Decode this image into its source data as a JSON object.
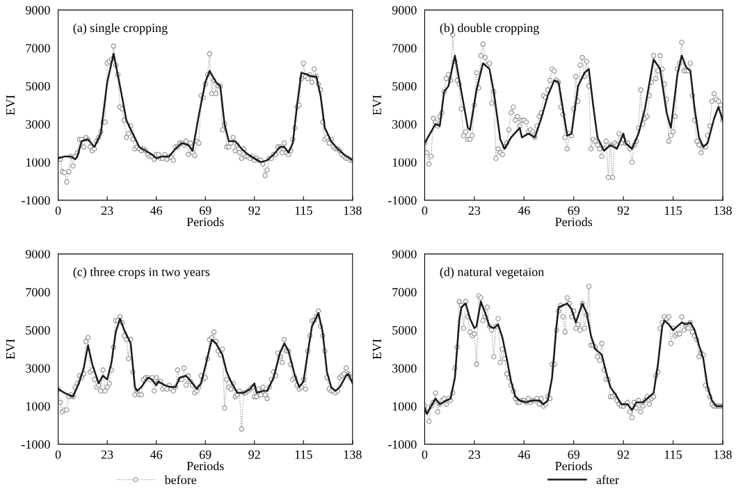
{
  "chart_data": [
    {
      "type": "line",
      "title": "(a) single cropping",
      "xlabel": "Periods",
      "ylabel": "EVI",
      "xlim": [
        0,
        138
      ],
      "ylim": [
        -1000,
        9000
      ],
      "xticks": [
        0,
        23,
        46,
        69,
        92,
        115,
        138
      ],
      "yticks": [
        -1000,
        1000,
        3000,
        5000,
        7000,
        9000
      ],
      "grid": false,
      "x": [
        0,
        1,
        2,
        3,
        4,
        5,
        6,
        7,
        8,
        9,
        10,
        11,
        12,
        13,
        14,
        15,
        16,
        17,
        18,
        19,
        20,
        21,
        22,
        23,
        24,
        25,
        26,
        27,
        28,
        29,
        30,
        31,
        32,
        33,
        34,
        35,
        36,
        37,
        38,
        39,
        40,
        41,
        42,
        43,
        44,
        45,
        46,
        47,
        48,
        49,
        50,
        51,
        52,
        53,
        54,
        55,
        56,
        57,
        58,
        59,
        60,
        61,
        62,
        63,
        64,
        65,
        66,
        67,
        68,
        69,
        70,
        71,
        72,
        73,
        74,
        75,
        76,
        77,
        78,
        79,
        80,
        81,
        82,
        83,
        84,
        85,
        86,
        87,
        88,
        89,
        90,
        91,
        92,
        93,
        94,
        95,
        96,
        97,
        98,
        99,
        100,
        101,
        102,
        103,
        104,
        105,
        106,
        107,
        108,
        109,
        110,
        111,
        112,
        113,
        114,
        115,
        116,
        117,
        118,
        119,
        120,
        121,
        122,
        123,
        124,
        125,
        126,
        127,
        128,
        129,
        130,
        131,
        132,
        133,
        134,
        135,
        136,
        137,
        138
      ],
      "series": [
        {
          "color": "#8c8c8c",
          "marker": "circle",
          "line_style": "dotted",
          "values": [
            1200,
            1150,
            500,
            450,
            -50,
            500,
            1300,
            800,
            1300,
            1500,
            2200,
            2200,
            1800,
            2300,
            2200,
            1800,
            1600,
            1700,
            2100,
            2300,
            2600,
            3100,
            3100,
            6200,
            6300,
            6400,
            7100,
            6100,
            5600,
            3900,
            3800,
            3200,
            2300,
            2500,
            2900,
            2200,
            1700,
            1800,
            1700,
            1600,
            1700,
            1600,
            1400,
            1300,
            1300,
            1150,
            1400,
            1400,
            1200,
            1200,
            1400,
            1150,
            1300,
            1250,
            1100,
            1800,
            1800,
            2000,
            2000,
            1900,
            2100,
            1400,
            2000,
            1500,
            1350,
            2100,
            2000,
            4500,
            4400,
            5100,
            5600,
            6700,
            4600,
            5300,
            4600,
            5000,
            5000,
            2700,
            3000,
            1800,
            1800,
            2000,
            2300,
            1600,
            1900,
            1500,
            1200,
            1700,
            1300,
            1300,
            1200,
            1300,
            1100,
            1200,
            1100,
            1100,
            900,
            300,
            600,
            1200,
            1200,
            1400,
            1400,
            1800,
            1800,
            1500,
            2000,
            1500,
            1400,
            1600,
            2200,
            2800,
            3900,
            4000,
            5400,
            6200,
            5500,
            5400,
            5600,
            5200,
            5900,
            5500,
            5100,
            4800,
            3100,
            2200,
            2300,
            2000,
            2200,
            1800,
            1700,
            1700,
            1600,
            1400,
            1300,
            1200,
            1200,
            1100,
            1100
          ]
        },
        {
          "color": "#1a1a1a",
          "marker": "none",
          "line_style": "solid",
          "x": [
            0,
            3,
            6,
            8,
            9,
            11,
            14,
            17,
            20,
            23,
            26,
            29,
            32,
            35,
            38,
            41,
            44,
            46,
            49,
            52,
            55,
            58,
            61,
            63,
            66,
            69,
            71,
            74,
            76,
            78,
            80,
            83,
            86,
            89,
            92,
            95,
            98,
            101,
            104,
            106,
            108,
            110,
            112,
            114,
            117,
            119,
            121,
            123,
            125,
            128,
            131,
            134,
            138
          ],
          "values": [
            1200,
            1300,
            1300,
            1150,
            1300,
            2100,
            2200,
            1800,
            2500,
            5200,
            6700,
            5000,
            3200,
            2500,
            1800,
            1600,
            1400,
            1200,
            1300,
            1300,
            1700,
            2000,
            1900,
            1600,
            3500,
            5200,
            5800,
            5200,
            5000,
            3000,
            2100,
            2100,
            1700,
            1400,
            1200,
            1000,
            1100,
            1400,
            1800,
            1800,
            1500,
            2000,
            4000,
            5700,
            5600,
            5500,
            5500,
            4500,
            2800,
            2100,
            1700,
            1400,
            1100
          ]
        }
      ]
    },
    {
      "type": "line",
      "title": "(b) double cropping",
      "xlabel": "Periods",
      "ylabel": "EVI",
      "xlim": [
        0,
        138
      ],
      "ylim": [
        -1000,
        9000
      ],
      "xticks": [
        0,
        23,
        46,
        69,
        92,
        115,
        138
      ],
      "yticks": [
        -1000,
        1000,
        3000,
        5000,
        7000,
        9000
      ],
      "grid": false,
      "x": [
        0,
        1,
        2,
        3,
        4,
        5,
        6,
        7,
        8,
        9,
        10,
        11,
        12,
        13,
        14,
        15,
        16,
        17,
        18,
        19,
        20,
        21,
        22,
        23,
        24,
        25,
        26,
        27,
        28,
        29,
        30,
        31,
        32,
        33,
        34,
        35,
        36,
        37,
        38,
        39,
        40,
        41,
        42,
        43,
        44,
        45,
        46,
        47,
        48,
        49,
        50,
        51,
        52,
        53,
        54,
        55,
        56,
        57,
        58,
        59,
        60,
        61,
        62,
        63,
        64,
        65,
        66,
        67,
        68,
        69,
        70,
        71,
        72,
        73,
        74,
        75,
        76,
        77,
        78,
        79,
        80,
        81,
        82,
        83,
        84,
        85,
        86,
        87,
        88,
        89,
        90,
        91,
        92,
        93,
        94,
        95,
        96,
        97,
        98,
        99,
        100,
        101,
        102,
        103,
        104,
        105,
        106,
        107,
        108,
        109,
        110,
        111,
        112,
        113,
        114,
        115,
        116,
        117,
        118,
        119,
        120,
        121,
        122,
        123,
        124,
        125,
        126,
        127,
        128,
        129,
        130,
        131,
        132,
        133,
        134,
        135,
        136,
        137,
        138
      ],
      "series": [
        {
          "color": "#8c8c8c",
          "marker": "circle",
          "line_style": "dotted",
          "values": [
            2000,
            1500,
            900,
            1300,
            3300,
            3100,
            2900,
            3400,
            3600,
            4700,
            5400,
            5600,
            5300,
            7700,
            6300,
            5300,
            5100,
            3800,
            2400,
            2600,
            2200,
            2200,
            2400,
            4000,
            5700,
            4900,
            6600,
            7200,
            6500,
            6100,
            6200,
            4100,
            4700,
            1200,
            1700,
            1500,
            1400,
            1800,
            2000,
            2700,
            3600,
            3900,
            3200,
            3400,
            2900,
            3200,
            3200,
            3100,
            2600,
            2700,
            2600,
            2300,
            2900,
            3400,
            3600,
            4500,
            4400,
            4800,
            5300,
            5900,
            5800,
            5300,
            5200,
            3900,
            3500,
            2300,
            1700,
            2500,
            2400,
            3800,
            5500,
            4200,
            6100,
            6500,
            5500,
            6300,
            5000,
            1700,
            2200,
            2100,
            1900,
            1700,
            1300,
            1700,
            2100,
            200,
            1900,
            200,
            2000,
            1900,
            2500,
            2000,
            2200,
            2000,
            2000,
            1700,
            1000,
            1900,
            2100,
            2800,
            4800,
            3000,
            3300,
            3400,
            4500,
            5200,
            6600,
            5400,
            5800,
            6600,
            5900,
            5100,
            4300,
            2100,
            2400,
            2600,
            3400,
            5900,
            6200,
            7300,
            5800,
            5800,
            5800,
            6200,
            4500,
            3200,
            2100,
            1900,
            1500,
            1800,
            1800,
            2400,
            2900,
            4200,
            4600,
            4300,
            4200,
            4000,
            3200
          ]
        },
        {
          "color": "#1a1a1a",
          "marker": "none",
          "line_style": "solid",
          "x": [
            0,
            3,
            5,
            7,
            9,
            11,
            14,
            17,
            20,
            21,
            24,
            27,
            30,
            32,
            35,
            37,
            40,
            44,
            45,
            48,
            51,
            54,
            57,
            60,
            62,
            64,
            66,
            68,
            71,
            74,
            76,
            78,
            80,
            83,
            86,
            89,
            92,
            93,
            96,
            99,
            102,
            105,
            106,
            109,
            112,
            114,
            117,
            119,
            121,
            123,
            125,
            127,
            129,
            131,
            134,
            136,
            138
          ],
          "values": [
            2000,
            2600,
            3000,
            2900,
            4700,
            5000,
            6600,
            4700,
            2800,
            2700,
            4800,
            6200,
            5900,
            4700,
            2200,
            1700,
            2300,
            2800,
            2300,
            2500,
            2300,
            3300,
            4500,
            5300,
            5200,
            3800,
            2400,
            2500,
            5000,
            5700,
            5900,
            4000,
            2300,
            1600,
            1900,
            1700,
            2500,
            2000,
            1700,
            2500,
            3800,
            5800,
            6400,
            5900,
            3600,
            2800,
            5600,
            6600,
            6000,
            5800,
            3800,
            2300,
            1800,
            2000,
            3300,
            3900,
            3200
          ]
        }
      ]
    },
    {
      "type": "line",
      "title": "(c) three crops in two years",
      "xlabel": "Periods",
      "ylabel": "EVI",
      "xlim": [
        0,
        138
      ],
      "ylim": [
        -1000,
        9000
      ],
      "xticks": [
        0,
        23,
        46,
        69,
        92,
        115,
        138
      ],
      "yticks": [
        -1000,
        1000,
        3000,
        5000,
        7000,
        9000
      ],
      "grid": false,
      "legend": "bottom",
      "x": [
        0,
        1,
        2,
        3,
        4,
        5,
        6,
        7,
        8,
        9,
        10,
        11,
        12,
        13,
        14,
        15,
        16,
        17,
        18,
        19,
        20,
        21,
        22,
        23,
        24,
        25,
        26,
        27,
        28,
        29,
        30,
        31,
        32,
        33,
        34,
        35,
        36,
        37,
        38,
        39,
        40,
        41,
        42,
        43,
        44,
        45,
        46,
        47,
        48,
        49,
        50,
        51,
        52,
        53,
        54,
        55,
        56,
        57,
        58,
        59,
        60,
        61,
        62,
        63,
        64,
        65,
        66,
        67,
        68,
        69,
        70,
        71,
        72,
        73,
        74,
        75,
        76,
        77,
        78,
        79,
        80,
        81,
        82,
        83,
        84,
        85,
        86,
        87,
        88,
        89,
        90,
        91,
        92,
        93,
        94,
        95,
        96,
        97,
        98,
        99,
        100,
        101,
        102,
        103,
        104,
        105,
        106,
        107,
        108,
        109,
        110,
        111,
        112,
        113,
        114,
        115,
        116,
        117,
        118,
        119,
        120,
        121,
        122,
        123,
        124,
        125,
        126,
        127,
        128,
        129,
        130,
        131,
        132,
        133,
        134,
        135,
        136,
        137,
        138
      ],
      "series": [
        {
          "name": "before",
          "color": "#8c8c8c",
          "marker": "circle",
          "line_style": "dotted",
          "values": [
            1900,
            1200,
            700,
            800,
            800,
            1500,
            1600,
            1500,
            2000,
            2200,
            2600,
            2500,
            2700,
            4400,
            4600,
            2800,
            2900,
            2400,
            2000,
            2100,
            1800,
            2900,
            1800,
            2000,
            2200,
            2900,
            4100,
            5500,
            5500,
            5700,
            5400,
            4700,
            4500,
            3500,
            4500,
            2800,
            1600,
            1800,
            1600,
            1600,
            2400,
            2500,
            2500,
            2400,
            2500,
            1800,
            2500,
            2300,
            2300,
            1900,
            2000,
            1900,
            2100,
            1900,
            1800,
            2000,
            2900,
            2400,
            2400,
            3000,
            2100,
            2600,
            2300,
            2100,
            1700,
            1800,
            2000,
            2600,
            2400,
            2500,
            3500,
            4500,
            4600,
            4900,
            4400,
            3900,
            3700,
            4000,
            900,
            2400,
            2000,
            1900,
            2200,
            1500,
            1600,
            1800,
            -200,
            1700,
            1700,
            1800,
            1900,
            2000,
            1500,
            1500,
            1900,
            1600,
            2000,
            1600,
            1400,
            2000,
            2400,
            2800,
            2600,
            3800,
            3600,
            3300,
            4500,
            3900,
            3900,
            3200,
            2400,
            2500,
            2100,
            1900,
            2000,
            2400,
            1900,
            3900,
            4700,
            5500,
            5500,
            5700,
            6000,
            5200,
            4700,
            3900,
            2500,
            1900,
            1800,
            1800,
            1700,
            1800,
            2500,
            2600,
            2700,
            3000,
            2700,
            2500,
            2500
          ]
        },
        {
          "name": "after",
          "color": "#1a1a1a",
          "marker": "none",
          "line_style": "solid",
          "x": [
            0,
            3,
            7,
            10,
            12,
            14,
            16,
            19,
            21,
            23,
            25,
            27,
            29,
            31,
            34,
            36,
            37,
            39,
            42,
            44,
            46,
            47,
            50,
            53,
            55,
            57,
            60,
            63,
            65,
            67,
            69,
            72,
            74,
            77,
            79,
            81,
            84,
            87,
            90,
            92,
            93,
            96,
            98,
            101,
            104,
            106,
            108,
            111,
            113,
            115,
            117,
            119,
            122,
            124,
            126,
            128,
            130,
            132,
            135,
            136,
            138
          ],
          "values": [
            1900,
            1700,
            1500,
            2300,
            3000,
            4200,
            3200,
            2200,
            2600,
            2400,
            3300,
            4900,
            5600,
            5000,
            4300,
            2000,
            1800,
            2000,
            2500,
            2400,
            2100,
            2300,
            2100,
            2000,
            2000,
            2500,
            2600,
            2200,
            1900,
            2200,
            3100,
            4500,
            4300,
            3700,
            2800,
            2300,
            1700,
            1700,
            1900,
            2200,
            1700,
            1800,
            1800,
            2500,
            3800,
            4300,
            3900,
            2600,
            2000,
            2300,
            3800,
            5200,
            5900,
            4900,
            2800,
            2000,
            1800,
            2000,
            2600,
            2700,
            2200
          ]
        }
      ]
    },
    {
      "type": "line",
      "title": "(d) natural vegetaion",
      "xlabel": "Periods",
      "ylabel": "EVI",
      "xlim": [
        0,
        138
      ],
      "ylim": [
        -1000,
        9000
      ],
      "xticks": [
        0,
        23,
        46,
        69,
        92,
        115,
        138
      ],
      "yticks": [
        -1000,
        1000,
        3000,
        5000,
        7000,
        9000
      ],
      "grid": false,
      "x": [
        0,
        1,
        2,
        3,
        4,
        5,
        6,
        7,
        8,
        9,
        10,
        11,
        12,
        13,
        14,
        15,
        16,
        17,
        18,
        19,
        20,
        21,
        22,
        23,
        24,
        25,
        26,
        27,
        28,
        29,
        30,
        31,
        32,
        33,
        34,
        35,
        36,
        37,
        38,
        39,
        40,
        41,
        42,
        43,
        44,
        45,
        46,
        47,
        48,
        49,
        50,
        51,
        52,
        53,
        54,
        55,
        56,
        57,
        58,
        59,
        60,
        61,
        62,
        63,
        64,
        65,
        66,
        67,
        68,
        69,
        70,
        71,
        72,
        73,
        74,
        75,
        76,
        77,
        78,
        79,
        80,
        81,
        82,
        83,
        84,
        85,
        86,
        87,
        88,
        89,
        90,
        91,
        92,
        93,
        94,
        95,
        96,
        97,
        98,
        99,
        100,
        101,
        102,
        103,
        104,
        105,
        106,
        107,
        108,
        109,
        110,
        111,
        112,
        113,
        114,
        115,
        116,
        117,
        118,
        119,
        120,
        121,
        122,
        123,
        124,
        125,
        126,
        127,
        128,
        129,
        130,
        131,
        132,
        133,
        134,
        135,
        136,
        137,
        138
      ],
      "series": [
        {
          "color": "#8c8c8c",
          "marker": "circle",
          "line_style": "dotted",
          "values": [
            1000,
            700,
            200,
            1000,
            1200,
            1700,
            700,
            1100,
            1300,
            1400,
            1100,
            1400,
            1300,
            1700,
            3000,
            4100,
            6500,
            6300,
            5100,
            6500,
            5700,
            4900,
            4700,
            4800,
            3200,
            6800,
            6700,
            5500,
            5700,
            6200,
            5200,
            5000,
            3600,
            5200,
            5600,
            3300,
            4000,
            3500,
            2700,
            2500,
            2100,
            1800,
            1400,
            1200,
            1200,
            1300,
            1300,
            1200,
            1400,
            1200,
            1300,
            1300,
            1400,
            1100,
            1400,
            1000,
            1100,
            1500,
            1400,
            3200,
            3200,
            5000,
            6000,
            6300,
            5700,
            4900,
            6700,
            6400,
            5700,
            6000,
            5100,
            5300,
            5000,
            6400,
            5100,
            5800,
            7300,
            4200,
            4200,
            4100,
            3600,
            3400,
            4300,
            2900,
            2400,
            2400,
            1500,
            1500,
            1600,
            1300,
            1100,
            1000,
            1000,
            1100,
            1200,
            700,
            400,
            1200,
            900,
            1300,
            700,
            1000,
            1300,
            1500,
            1100,
            1400,
            1500,
            2600,
            2800,
            5100,
            5400,
            5700,
            5600,
            5700,
            4300,
            5100,
            4700,
            4800,
            4800,
            5700,
            5000,
            5300,
            5100,
            5400,
            4900,
            4700,
            4500,
            3600,
            3800,
            3700,
            2100,
            1900,
            1500,
            1100,
            1000,
            1000,
            1000,
            1000,
            1000
          ]
        },
        {
          "color": "#1a1a1a",
          "marker": "none",
          "line_style": "solid",
          "x": [
            0,
            1,
            3,
            5,
            7,
            10,
            12,
            14,
            16,
            17,
            19,
            21,
            23,
            24,
            26,
            28,
            30,
            32,
            34,
            36,
            38,
            40,
            42,
            44,
            47,
            50,
            53,
            55,
            57,
            59,
            61,
            62,
            64,
            66,
            68,
            70,
            73,
            75,
            77,
            79,
            82,
            84,
            86,
            89,
            91,
            94,
            96,
            98,
            101,
            104,
            106,
            108,
            110,
            111,
            113,
            115,
            117,
            119,
            121,
            123,
            125,
            127,
            129,
            131,
            133,
            135,
            138
          ],
          "values": [
            900,
            600,
            1000,
            1400,
            1100,
            1300,
            1400,
            2500,
            5500,
            6200,
            6400,
            5600,
            5100,
            5200,
            6500,
            5900,
            5200,
            5100,
            5300,
            4600,
            3500,
            2300,
            1500,
            1300,
            1200,
            1300,
            1300,
            1100,
            1300,
            2500,
            5200,
            6200,
            6300,
            6400,
            6100,
            5400,
            6400,
            5900,
            4700,
            4000,
            3700,
            2800,
            2000,
            1500,
            1100,
            1100,
            800,
            1200,
            1200,
            1500,
            1700,
            3200,
            5200,
            5500,
            5300,
            5000,
            5200,
            5400,
            5300,
            5400,
            5000,
            4200,
            3500,
            2000,
            1300,
            1000,
            1000
          ]
        }
      ]
    }
  ]
}
